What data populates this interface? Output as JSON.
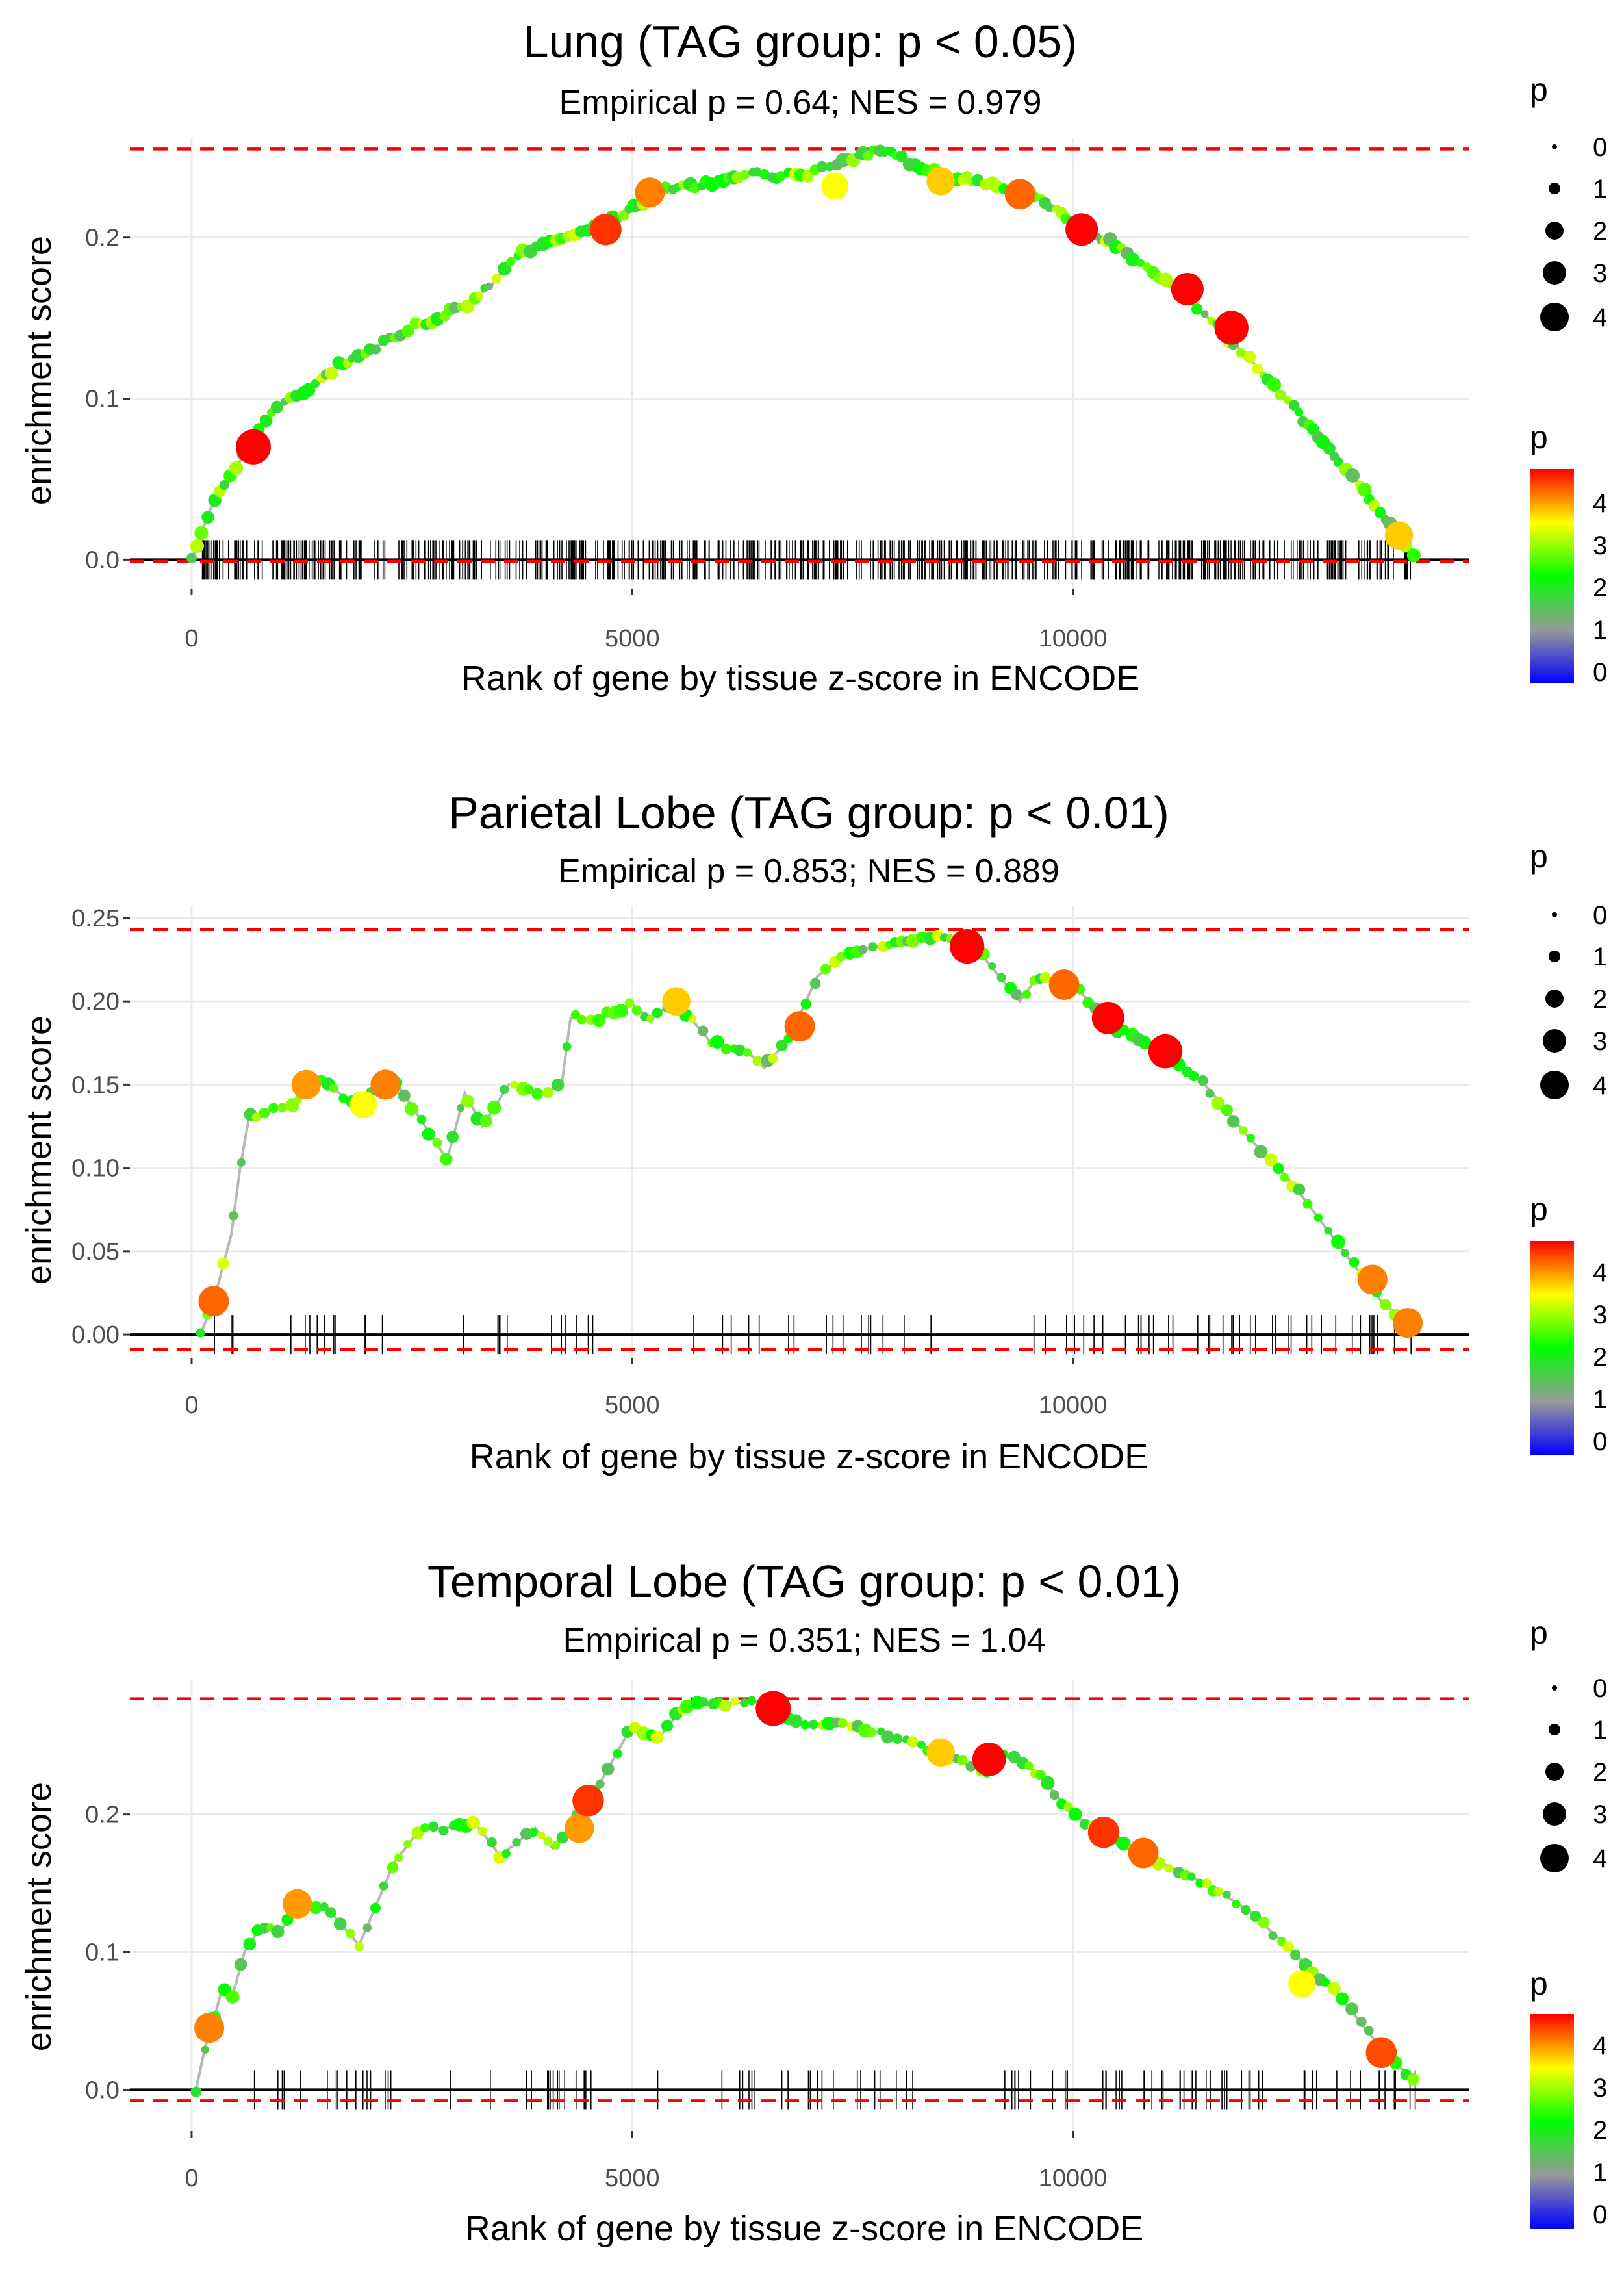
{
  "chart_data": [
    {
      "type": "scatter",
      "title": "Lung (TAG group: p < 0.05)",
      "subtitle": "Empirical p = 0.64; NES = 0.979",
      "xlabel": "Rank of gene by tissue z-score in ENCODE",
      "ylabel": "enrichment score",
      "xlim": [
        -700,
        14500
      ],
      "ylim": [
        -0.018,
        0.262
      ],
      "xticks": [
        0,
        5000,
        10000
      ],
      "xtick_labels": [
        "0",
        "5000",
        "10000"
      ],
      "yticks": [
        0,
        0.1,
        0.2
      ],
      "ytick_labels": [
        "0.0",
        "0.1",
        "0.2"
      ],
      "max_line": 0.255,
      "min_line": -0.001,
      "x_end": 13900,
      "curve": [
        [
          0,
          0
        ],
        [
          200,
          0.03
        ],
        [
          400,
          0.05
        ],
        [
          600,
          0.065
        ],
        [
          800,
          0.085
        ],
        [
          1000,
          0.095
        ],
        [
          1300,
          0.105
        ],
        [
          1600,
          0.118
        ],
        [
          1900,
          0.128
        ],
        [
          2200,
          0.135
        ],
        [
          2500,
          0.145
        ],
        [
          2800,
          0.15
        ],
        [
          3100,
          0.158
        ],
        [
          3400,
          0.17
        ],
        [
          3600,
          0.185
        ],
        [
          3900,
          0.195
        ],
        [
          4200,
          0.2
        ],
        [
          4500,
          0.205
        ],
        [
          4800,
          0.212
        ],
        [
          5000,
          0.218
        ],
        [
          5300,
          0.228
        ],
        [
          5600,
          0.232
        ],
        [
          6000,
          0.235
        ],
        [
          6300,
          0.24
        ],
        [
          6600,
          0.238
        ],
        [
          7000,
          0.24
        ],
        [
          7300,
          0.245
        ],
        [
          7600,
          0.25
        ],
        [
          7800,
          0.255
        ],
        [
          8200,
          0.245
        ],
        [
          8600,
          0.238
        ],
        [
          9000,
          0.235
        ],
        [
          9500,
          0.228
        ],
        [
          10000,
          0.21
        ],
        [
          10500,
          0.195
        ],
        [
          11000,
          0.175
        ],
        [
          11500,
          0.152
        ],
        [
          12000,
          0.125
        ],
        [
          12500,
          0.095
        ],
        [
          13000,
          0.062
        ],
        [
          13500,
          0.03
        ],
        [
          13900,
          0.0
        ]
      ],
      "highlights": [
        [
          700,
          0.07,
          4.5,
          4.5
        ],
        [
          4700,
          0.205,
          3.8,
          3.8
        ],
        [
          5200,
          0.228,
          3.5,
          3.5
        ],
        [
          7300,
          0.232,
          3,
          3
        ],
        [
          8500,
          0.235,
          3.2,
          3.2
        ],
        [
          9400,
          0.227,
          3.6,
          3.6
        ],
        [
          10100,
          0.205,
          4,
          4
        ],
        [
          11300,
          0.168,
          4,
          4
        ],
        [
          11800,
          0.144,
          4.3,
          4.3
        ],
        [
          13700,
          0.015,
          3.2,
          3.2
        ]
      ],
      "hit_ranks": "dense",
      "hit_count": 520,
      "hit_seed": 11
    },
    {
      "type": "scatter",
      "title": "Parietal Lobe (TAG group: p < 0.01)",
      "subtitle": "Empirical p = 0.853; NES = 0.889",
      "xlabel": "Rank of gene by tissue z-score in ENCODE",
      "ylabel": "enrichment score",
      "xlim": [
        -700,
        14500
      ],
      "ylim": [
        -0.014,
        0.257
      ],
      "xticks": [
        0,
        5000,
        10000
      ],
      "xtick_labels": [
        "0",
        "5000",
        "10000"
      ],
      "yticks": [
        0,
        0.05,
        0.1,
        0.15,
        0.2,
        0.25
      ],
      "ytick_labels": [
        "0.00",
        "0.05",
        "0.10",
        "0.15",
        "0.20",
        "0.25"
      ],
      "max_line": 0.243,
      "min_line": -0.009,
      "x_end": 13800,
      "curve": [
        [
          100,
          0
        ],
        [
          250,
          0.02
        ],
        [
          350,
          0.04
        ],
        [
          450,
          0.06
        ],
        [
          550,
          0.1
        ],
        [
          650,
          0.13
        ],
        [
          900,
          0.135
        ],
        [
          1200,
          0.14
        ],
        [
          1400,
          0.155
        ],
        [
          1600,
          0.148
        ],
        [
          1800,
          0.14
        ],
        [
          2200,
          0.15
        ],
        [
          2300,
          0.153
        ],
        [
          2900,
          0.105
        ],
        [
          3100,
          0.145
        ],
        [
          3300,
          0.125
        ],
        [
          3600,
          0.15
        ],
        [
          4000,
          0.145
        ],
        [
          4200,
          0.15
        ],
        [
          4300,
          0.19
        ],
        [
          4600,
          0.19
        ],
        [
          5000,
          0.198
        ],
        [
          5200,
          0.19
        ],
        [
          5500,
          0.2
        ],
        [
          5900,
          0.175
        ],
        [
          6300,
          0.17
        ],
        [
          6500,
          0.16
        ],
        [
          6800,
          0.18
        ],
        [
          7100,
          0.215
        ],
        [
          7500,
          0.23
        ],
        [
          8000,
          0.235
        ],
        [
          8500,
          0.24
        ],
        [
          8900,
          0.232
        ],
        [
          9400,
          0.2
        ],
        [
          9600,
          0.215
        ],
        [
          10000,
          0.21
        ],
        [
          10500,
          0.183
        ],
        [
          11000,
          0.17
        ],
        [
          11500,
          0.15
        ],
        [
          12000,
          0.118
        ],
        [
          12500,
          0.09
        ],
        [
          13000,
          0.055
        ],
        [
          13500,
          0.02
        ],
        [
          13800,
          0.007
        ]
      ],
      "highlights": [
        [
          250,
          0.02,
          3.6,
          3.6
        ],
        [
          1300,
          0.15,
          3.4,
          3.4
        ],
        [
          1950,
          0.138,
          3,
          3
        ],
        [
          2200,
          0.15,
          3.5,
          3.5
        ],
        [
          5500,
          0.2,
          3.2,
          3.2
        ],
        [
          6900,
          0.185,
          3.6,
          3.6
        ],
        [
          8800,
          0.233,
          4.4,
          4.4
        ],
        [
          9900,
          0.21,
          3.6,
          3.6
        ],
        [
          10400,
          0.19,
          4,
          4
        ],
        [
          11050,
          0.17,
          4.3,
          4.3
        ],
        [
          13400,
          0.033,
          3.5,
          3.5
        ],
        [
          13800,
          0.007,
          3.5,
          3.5
        ]
      ],
      "hit_ranks": "clustered",
      "hit_count": 200,
      "hit_seed": 23
    },
    {
      "type": "scatter",
      "title": "Temporal Lobe (TAG group: p < 0.01)",
      "subtitle": "Empirical p = 0.351; NES = 1.04",
      "xlabel": "Rank of gene by tissue z-score in ENCODE",
      "ylabel": "enrichment score",
      "xlim": [
        -700,
        14500
      ],
      "ylim": [
        -0.03,
        0.298
      ],
      "xticks": [
        0,
        5000,
        10000
      ],
      "xtick_labels": [
        "0",
        "5000",
        "10000"
      ],
      "yticks": [
        0,
        0.1,
        0.2
      ],
      "ytick_labels": [
        "0.0",
        "0.1",
        "0.2"
      ],
      "max_line": 0.284,
      "min_line": -0.008,
      "x_end": 13900,
      "curve": [
        [
          50,
          0
        ],
        [
          150,
          0.03
        ],
        [
          250,
          0.05
        ],
        [
          350,
          0.075
        ],
        [
          450,
          0.065
        ],
        [
          600,
          0.1
        ],
        [
          800,
          0.12
        ],
        [
          1000,
          0.115
        ],
        [
          1200,
          0.13
        ],
        [
          1500,
          0.135
        ],
        [
          1900,
          0.105
        ],
        [
          2300,
          0.165
        ],
        [
          2600,
          0.19
        ],
        [
          2900,
          0.19
        ],
        [
          3200,
          0.195
        ],
        [
          3500,
          0.17
        ],
        [
          3900,
          0.19
        ],
        [
          4100,
          0.175
        ],
        [
          4400,
          0.2
        ],
        [
          4700,
          0.23
        ],
        [
          5000,
          0.265
        ],
        [
          5300,
          0.255
        ],
        [
          5600,
          0.28
        ],
        [
          6000,
          0.28
        ],
        [
          6400,
          0.282
        ],
        [
          6700,
          0.27
        ],
        [
          7000,
          0.265
        ],
        [
          7500,
          0.265
        ],
        [
          8000,
          0.255
        ],
        [
          8500,
          0.245
        ],
        [
          9000,
          0.23
        ],
        [
          9200,
          0.245
        ],
        [
          9600,
          0.23
        ],
        [
          10000,
          0.2
        ],
        [
          10500,
          0.18
        ],
        [
          11000,
          0.165
        ],
        [
          11500,
          0.15
        ],
        [
          12000,
          0.13
        ],
        [
          12500,
          0.1
        ],
        [
          13000,
          0.07
        ],
        [
          13500,
          0.03
        ],
        [
          13900,
          0.005
        ]
      ],
      "highlights": [
        [
          200,
          0.045,
          3.5,
          3.5
        ],
        [
          1200,
          0.135,
          3.4,
          3.4
        ],
        [
          4400,
          0.19,
          3.4,
          3.4
        ],
        [
          4500,
          0.21,
          3.8,
          3.8
        ],
        [
          6600,
          0.277,
          4.5,
          4.5
        ],
        [
          8500,
          0.245,
          3.2,
          3.2
        ],
        [
          9050,
          0.24,
          4.2,
          4.2
        ],
        [
          10350,
          0.187,
          3.8,
          3.8
        ],
        [
          10800,
          0.172,
          3.6,
          3.6
        ],
        [
          12600,
          0.077,
          3,
          3
        ],
        [
          13500,
          0.027,
          3.7,
          3.7
        ]
      ],
      "hit_ranks": "clustered",
      "hit_count": 260,
      "hit_seed": 37
    }
  ],
  "legends": {
    "size_title": "p",
    "size_labels": [
      "0",
      "1",
      "2",
      "3",
      "4"
    ],
    "color_title": "p",
    "color_labels": [
      "4",
      "3",
      "2",
      "1",
      "0"
    ]
  },
  "colors": {
    "max_line": "#ff0000",
    "curve": "#b8b8b8",
    "grid": "#ebebeb",
    "zero_line": "#000000",
    "gradient": [
      "#0000ff",
      "#999999",
      "#00ff00",
      "#ffff00",
      "#ff0000"
    ]
  }
}
